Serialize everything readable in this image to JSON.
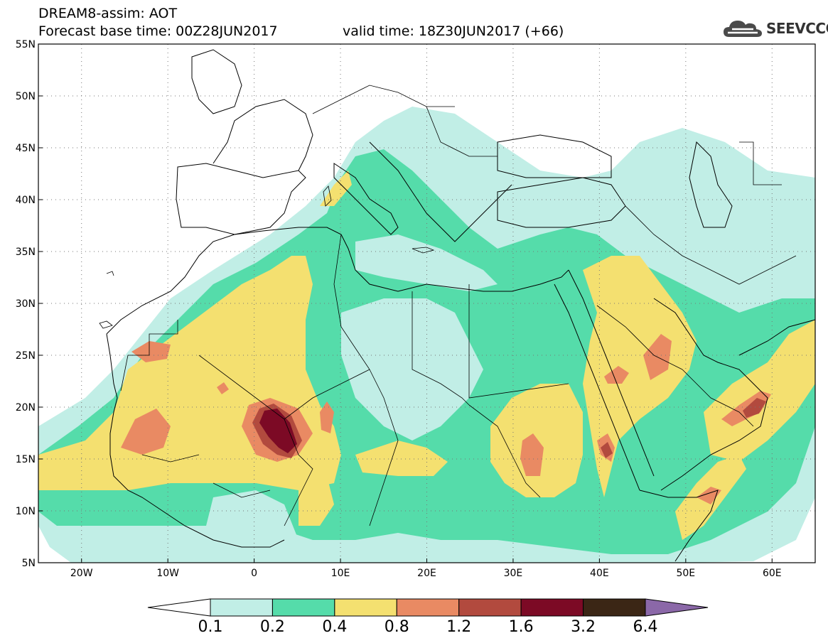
{
  "header": {
    "title": "DREAM8-assim: AOT",
    "base_time": "Forecast base time: 00Z28JUN2017",
    "valid_time": "valid time: 18Z30JUN2017 (+66)"
  },
  "logo": {
    "text": "SEEVCCC",
    "icon": "cloud-logo-icon"
  },
  "map": {
    "lon_range": [
      -25,
      65
    ],
    "lat_range": [
      5,
      55
    ],
    "lon_ticks": [
      "20W",
      "10W",
      "0",
      "10E",
      "20E",
      "30E",
      "40E",
      "50E",
      "60E"
    ],
    "lat_ticks": [
      "55N",
      "50N",
      "45N",
      "40N",
      "35N",
      "30N",
      "25N",
      "20N",
      "15N",
      "10N",
      "5N"
    ],
    "grid": true
  },
  "colorbar": {
    "levels": [
      "0.1",
      "0.2",
      "0.4",
      "0.8",
      "1.2",
      "1.6",
      "3.2",
      "6.4"
    ],
    "colors": [
      "#ffffff",
      "#c1eee6",
      "#55dcaa",
      "#f4e070",
      "#e98a63",
      "#b24a3e",
      "#7c0a25",
      "#3b2615",
      "#8b68a8"
    ]
  }
}
